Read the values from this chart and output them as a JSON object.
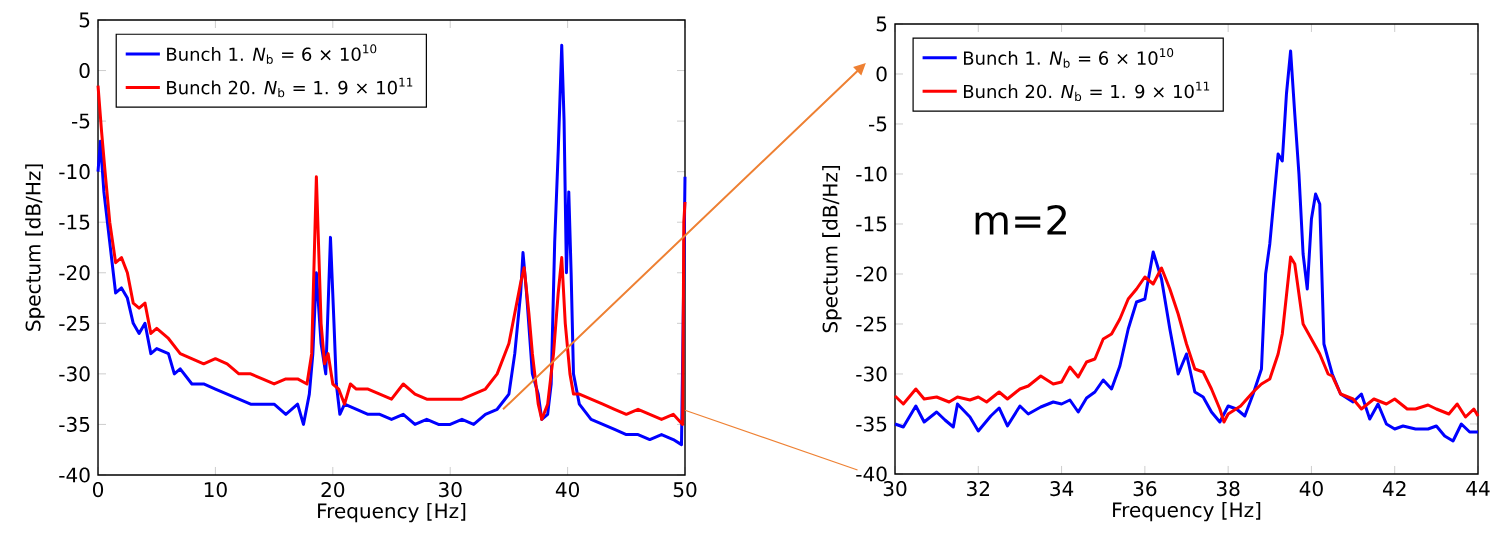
{
  "chart_data": [
    {
      "type": "line",
      "xlabel": "Frequency [Hz]",
      "ylabel": "Spectum [dB/Hz]",
      "xlim": [
        0,
        50
      ],
      "ylim": [
        -40,
        5
      ],
      "xticks": [
        0,
        10,
        20,
        30,
        40,
        50
      ],
      "yticks": [
        -40,
        -35,
        -30,
        -25,
        -20,
        -15,
        -10,
        -5,
        0,
        5
      ],
      "legend": "top left",
      "series": [
        {
          "name": "Bunch 1. *N*$_{b}$ = 6 × 10$^{10}$",
          "color": "#0000ff",
          "x": [
            0,
            0.2,
            0.5,
            1,
            1.5,
            2,
            2.5,
            3,
            3.5,
            4,
            4.5,
            5,
            6,
            6.5,
            7,
            8,
            9,
            10,
            11,
            12,
            13,
            14,
            15,
            16,
            17,
            17.5,
            18,
            18.3,
            18.6,
            19,
            19.4,
            19.8,
            20.1,
            20.3,
            20.6,
            21,
            22,
            23,
            24,
            25,
            26,
            27,
            28,
            29,
            30,
            31,
            32,
            33,
            34,
            35,
            35.5,
            36,
            36.2,
            36.5,
            37,
            37.5,
            37.8,
            38.3,
            38.6,
            38.9,
            39.2,
            39.5,
            39.7,
            39.9,
            40.1,
            40.3,
            40.5,
            41,
            42,
            43,
            44,
            45,
            46,
            47,
            48,
            49,
            49.7,
            49.9,
            50
          ],
          "values": [
            -10,
            -7,
            -12,
            -17,
            -22,
            -21.5,
            -22.5,
            -25,
            -26,
            -25,
            -28,
            -27.5,
            -28,
            -30,
            -29.5,
            -31,
            -31,
            -31.5,
            -32,
            -32.5,
            -33,
            -33,
            -33,
            -34,
            -33,
            -35,
            -32,
            -28,
            -20,
            -27,
            -30,
            -16.5,
            -25,
            -31,
            -34,
            -33,
            -33.5,
            -34,
            -34,
            -34.5,
            -34,
            -35,
            -34.5,
            -35,
            -35,
            -34.5,
            -35,
            -34,
            -33.5,
            -32,
            -28,
            -22,
            -18,
            -22,
            -30,
            -32,
            -34.5,
            -34,
            -31,
            -17,
            -8,
            2.5,
            -5,
            -20,
            -12,
            -20,
            -30,
            -33,
            -34.5,
            -35,
            -35.5,
            -36,
            -36,
            -36.5,
            -36,
            -36.5,
            -37,
            -20,
            -10.5
          ]
        },
        {
          "name": "Bunch 20. *N*$_{b}$ = 1. 9 × 10$^{11}$",
          "color": "#ff0000",
          "x": [
            0,
            0.3,
            0.6,
            1,
            1.5,
            2,
            2.5,
            3,
            3.5,
            4,
            4.5,
            5,
            6,
            7,
            8,
            9,
            10,
            11,
            12,
            13,
            14,
            15,
            16,
            17,
            17.8,
            18.2,
            18.6,
            19,
            19.3,
            19.6,
            20,
            20.5,
            21,
            21.5,
            22,
            23,
            24,
            25,
            26,
            27,
            28,
            29,
            30,
            31,
            32,
            33,
            34,
            35,
            35.5,
            36,
            36.3,
            36.7,
            37,
            37.5,
            37.8,
            38.3,
            38.8,
            39.2,
            39.5,
            39.8,
            40.2,
            40.5,
            41,
            42,
            43,
            44,
            45,
            46,
            47,
            48,
            49,
            49.8,
            49.9,
            50
          ],
          "values": [
            -1.5,
            -6,
            -10,
            -15,
            -19,
            -18.5,
            -20,
            -23,
            -23.5,
            -23,
            -26,
            -25.5,
            -26.5,
            -28,
            -28.5,
            -29,
            -28.5,
            -29,
            -30,
            -30,
            -30.5,
            -31,
            -30.5,
            -30.5,
            -31,
            -28,
            -10.5,
            -25,
            -29,
            -28,
            -31,
            -31.5,
            -33,
            -31,
            -31.5,
            -31.5,
            -32,
            -32.5,
            -31,
            -32,
            -32.5,
            -32.5,
            -32.5,
            -32.5,
            -32,
            -31.5,
            -30,
            -27,
            -24,
            -21,
            -19.5,
            -24,
            -28,
            -33,
            -34.5,
            -33,
            -28,
            -22,
            -18.5,
            -25,
            -30,
            -32,
            -32,
            -32.5,
            -33,
            -33.5,
            -34,
            -33.5,
            -34,
            -34.5,
            -34,
            -35,
            -15,
            -13
          ]
        }
      ]
    },
    {
      "type": "line",
      "xlabel": "Frequency [Hz]",
      "ylabel": "Spectum [dB/Hz]",
      "xlim": [
        30,
        44
      ],
      "ylim": [
        -40,
        5
      ],
      "xticks": [
        30,
        32,
        34,
        36,
        38,
        40,
        42,
        44
      ],
      "yticks": [
        -40,
        -35,
        -30,
        -25,
        -20,
        -15,
        -10,
        -5,
        0,
        5
      ],
      "legend": "top left",
      "annotations": [
        "m=2"
      ],
      "series": [
        {
          "name": "Bunch 1. *N*$_{b}$ = 6 × 10$^{10}$",
          "color": "#0000ff",
          "x": [
            30,
            30.2,
            30.5,
            30.7,
            31,
            31.2,
            31.4,
            31.5,
            31.8,
            32,
            32.3,
            32.5,
            32.7,
            33,
            33.2,
            33.5,
            33.8,
            34,
            34.2,
            34.4,
            34.6,
            34.8,
            35,
            35.2,
            35.4,
            35.6,
            35.8,
            36,
            36.2,
            36.4,
            36.6,
            36.8,
            37,
            37.2,
            37.4,
            37.6,
            37.8,
            38,
            38.2,
            38.4,
            38.6,
            38.8,
            38.9,
            39,
            39.2,
            39.3,
            39.4,
            39.5,
            39.6,
            39.7,
            39.8,
            39.9,
            40,
            40.1,
            40.2,
            40.3,
            40.5,
            40.7,
            41,
            41.2,
            41.4,
            41.6,
            41.8,
            42,
            42.2,
            42.5,
            42.8,
            43,
            43.2,
            43.4,
            43.6,
            43.8,
            44
          ],
          "values": [
            -35,
            -35.3,
            -33.2,
            -34.8,
            -33.8,
            -34.6,
            -35.3,
            -33,
            -34.3,
            -35.7,
            -34.2,
            -33.4,
            -35.2,
            -33.2,
            -34,
            -33.3,
            -32.8,
            -33,
            -32.6,
            -33.8,
            -32.4,
            -31.8,
            -30.6,
            -31.5,
            -29.2,
            -25.5,
            -22.8,
            -22.5,
            -17.8,
            -20.5,
            -25.5,
            -30,
            -28,
            -31.8,
            -32.3,
            -33.8,
            -34.8,
            -33.2,
            -33.5,
            -34.2,
            -32,
            -29.5,
            -20,
            -17,
            -8,
            -8.7,
            -2,
            2.3,
            -4,
            -10,
            -18,
            -21.5,
            -14.5,
            -12,
            -13,
            -27,
            -30,
            -32,
            -32.8,
            -32,
            -34.5,
            -33,
            -35,
            -35.5,
            -35.2,
            -35.5,
            -35.5,
            -35.2,
            -36.2,
            -36.7,
            -35,
            -35.8,
            -35.8
          ]
        },
        {
          "name": "Bunch 20. *N*$_{b}$ = 1. 9 × 10$^{11}$",
          "color": "#ff0000",
          "x": [
            30,
            30.2,
            30.5,
            30.7,
            31,
            31.3,
            31.5,
            31.8,
            32,
            32.2,
            32.5,
            32.7,
            33,
            33.2,
            33.5,
            33.8,
            34,
            34.2,
            34.4,
            34.6,
            34.8,
            35,
            35.2,
            35.4,
            35.6,
            35.8,
            36,
            36.2,
            36.4,
            36.6,
            36.8,
            37,
            37.2,
            37.4,
            37.6,
            37.8,
            37.9,
            38,
            38.3,
            38.6,
            38.8,
            39,
            39.2,
            39.3,
            39.5,
            39.6,
            39.8,
            40,
            40.2,
            40.4,
            40.5,
            40.7,
            41,
            41.2,
            41.5,
            41.8,
            42,
            42.3,
            42.5,
            42.8,
            43,
            43.3,
            43.5,
            43.7,
            43.9,
            44
          ],
          "values": [
            -32.2,
            -33,
            -31.5,
            -32.5,
            -32.3,
            -32.8,
            -32.3,
            -32.6,
            -32.3,
            -32.8,
            -31.8,
            -32.5,
            -31.5,
            -31.2,
            -30.2,
            -31,
            -30.8,
            -29.3,
            -30.3,
            -28.8,
            -28.5,
            -26.5,
            -26,
            -24.5,
            -22.5,
            -21.5,
            -20.3,
            -21,
            -19.4,
            -21.5,
            -24,
            -27,
            -29.5,
            -29.8,
            -31.5,
            -33.5,
            -34.8,
            -34,
            -33.2,
            -31.8,
            -31,
            -30.5,
            -28,
            -26,
            -18.3,
            -19,
            -25,
            -26.5,
            -28,
            -30,
            -30.2,
            -32,
            -32.5,
            -33.5,
            -32.5,
            -33,
            -32.5,
            -33.5,
            -33.5,
            -33.1,
            -33.5,
            -34,
            -33,
            -34.3,
            -33.5,
            -34.2
          ]
        }
      ]
    }
  ]
}
